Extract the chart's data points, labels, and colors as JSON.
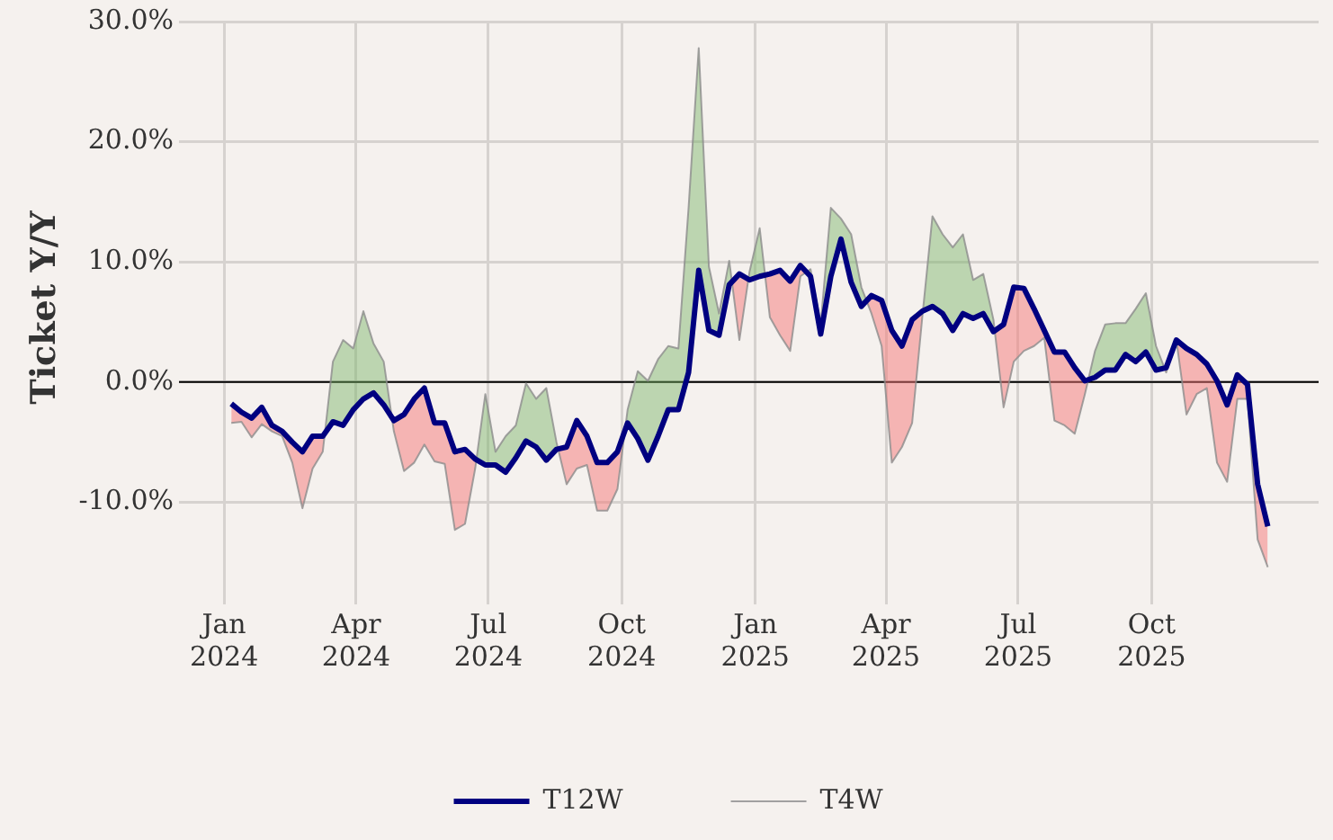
{
  "chart_data": {
    "type": "line",
    "ylabel": "Ticket Y/Y",
    "x": [
      "2024-01-06",
      "2024-01-13",
      "2024-01-20",
      "2024-01-27",
      "2024-02-03",
      "2024-02-10",
      "2024-02-17",
      "2024-02-24",
      "2024-03-02",
      "2024-03-09",
      "2024-03-16",
      "2024-03-23",
      "2024-03-30",
      "2024-04-06",
      "2024-04-13",
      "2024-04-20",
      "2024-04-27",
      "2024-05-04",
      "2024-05-11",
      "2024-05-18",
      "2024-05-25",
      "2024-06-01",
      "2024-06-08",
      "2024-06-15",
      "2024-06-22",
      "2024-06-29",
      "2024-07-06",
      "2024-07-13",
      "2024-07-20",
      "2024-07-27",
      "2024-08-03",
      "2024-08-10",
      "2024-08-17",
      "2024-08-24",
      "2024-08-31",
      "2024-09-07",
      "2024-09-14",
      "2024-09-21",
      "2024-09-28",
      "2024-10-05",
      "2024-10-12",
      "2024-10-19",
      "2024-10-26",
      "2024-11-02",
      "2024-11-09",
      "2024-11-16",
      "2024-11-23",
      "2024-11-30",
      "2024-12-07",
      "2024-12-14",
      "2024-12-21",
      "2024-12-28",
      "2025-01-04",
      "2025-01-11",
      "2025-01-18",
      "2025-01-25",
      "2025-02-01",
      "2025-02-08",
      "2025-02-15",
      "2025-02-22",
      "2025-03-01",
      "2025-03-08",
      "2025-03-15",
      "2025-03-22",
      "2025-03-29",
      "2025-04-05",
      "2025-04-12",
      "2025-04-19",
      "2025-04-26",
      "2025-05-03",
      "2025-05-10",
      "2025-05-17",
      "2025-05-24",
      "2025-05-31",
      "2025-06-07",
      "2025-06-14",
      "2025-06-21",
      "2025-06-28",
      "2025-07-05",
      "2025-07-12",
      "2025-07-19",
      "2025-07-26",
      "2025-08-02",
      "2025-08-09",
      "2025-08-16",
      "2025-08-23",
      "2025-08-30",
      "2025-09-06",
      "2025-09-13",
      "2025-09-20",
      "2025-09-27",
      "2025-10-04",
      "2025-10-11",
      "2025-10-18",
      "2025-10-25",
      "2025-11-01",
      "2025-11-08",
      "2025-11-15",
      "2025-11-22",
      "2025-11-29",
      "2025-12-06",
      "2025-12-13",
      "2025-12-20"
    ],
    "series": [
      {
        "name": "T4W",
        "color": "#8c8c8c",
        "values": [
          -3.4,
          -3.3,
          -4.6,
          -3.5,
          -4.1,
          -4.5,
          -6.7,
          -10.5,
          -7.2,
          -5.8,
          1.7,
          3.5,
          2.8,
          5.9,
          3.2,
          1.7,
          -4.1,
          -7.4,
          -6.7,
          -5.2,
          -6.6,
          -6.8,
          -12.3,
          -11.8,
          -7.2,
          -1.0,
          -5.8,
          -4.5,
          -3.6,
          -0.1,
          -1.4,
          -0.5,
          -5.0,
          -8.5,
          -7.2,
          -6.9,
          -10.7,
          -10.7,
          -8.9,
          -2.3,
          0.9,
          0.1,
          1.9,
          3.0,
          2.8,
          14.5,
          27.8,
          9.6,
          5.7,
          10.1,
          3.5,
          9.2,
          12.8,
          5.4,
          3.9,
          2.6,
          8.8,
          9.4,
          4.8,
          14.5,
          13.6,
          12.3,
          7.9,
          5.7,
          3.0,
          -6.7,
          -5.4,
          -3.4,
          5.4,
          13.8,
          12.3,
          11.2,
          12.3,
          8.5,
          9.0,
          5.2,
          -2.1,
          1.7,
          2.6,
          3.0,
          3.7,
          -3.2,
          -3.6,
          -4.3,
          -1.0,
          2.6,
          4.8,
          4.9,
          4.9,
          6.1,
          7.4,
          3.0,
          0.8,
          3.5,
          -2.7,
          -1.0,
          -0.5,
          -6.7,
          -8.3,
          -1.4,
          -1.4,
          -13.1,
          -15.4
        ]
      },
      {
        "name": "T12W",
        "color": "#000080",
        "values": [
          -1.8,
          -2.5,
          -3.0,
          -2.1,
          -3.6,
          -4.1,
          -5.0,
          -5.8,
          -4.5,
          -4.5,
          -3.3,
          -3.6,
          -2.3,
          -1.4,
          -0.9,
          -1.9,
          -3.2,
          -2.7,
          -1.4,
          -0.5,
          -3.4,
          -3.4,
          -5.8,
          -5.6,
          -6.4,
          -6.9,
          -6.9,
          -7.5,
          -6.3,
          -4.9,
          -5.4,
          -6.5,
          -5.6,
          -5.4,
          -3.2,
          -4.5,
          -6.7,
          -6.7,
          -5.8,
          -3.4,
          -4.7,
          -6.5,
          -4.5,
          -2.3,
          -2.3,
          0.8,
          9.3,
          4.3,
          3.9,
          8.1,
          9.0,
          8.5,
          8.8,
          9.0,
          9.3,
          8.4,
          9.7,
          8.8,
          4.0,
          8.8,
          11.9,
          8.3,
          6.3,
          7.2,
          6.8,
          4.3,
          3.0,
          5.2,
          5.9,
          6.3,
          5.7,
          4.3,
          5.7,
          5.3,
          5.7,
          4.2,
          4.8,
          7.9,
          7.8,
          6.1,
          4.3,
          2.5,
          2.5,
          1.2,
          0.1,
          0.4,
          1.0,
          1.0,
          2.3,
          1.7,
          2.5,
          1.0,
          1.2,
          3.5,
          2.8,
          2.3,
          1.5,
          0.1,
          -1.9,
          0.6,
          -0.2,
          -8.5,
          -12.0
        ]
      }
    ],
    "ylim": [
      -17.6,
      30
    ],
    "yticks": [
      {
        "value": -10,
        "label": "-10.0%"
      },
      {
        "value": 0,
        "label": "0.0%"
      },
      {
        "value": 10,
        "label": "10.0%"
      },
      {
        "value": 20,
        "label": "20.0%"
      },
      {
        "value": 30,
        "label": "30.0%"
      }
    ],
    "xlim": [
      "2023-12-01",
      "2026-01-24"
    ],
    "xticks": [
      {
        "value": "2024-01-01",
        "label": "Jan 2024"
      },
      {
        "value": "2024-04-01",
        "label": "Apr 2024"
      },
      {
        "value": "2024-07-01",
        "label": "Jul 2024"
      },
      {
        "value": "2024-10-01",
        "label": "Oct 2024"
      },
      {
        "value": "2025-01-01",
        "label": "Jan 2025"
      },
      {
        "value": "2025-04-01",
        "label": "Apr 2025"
      },
      {
        "value": "2025-07-01",
        "label": "Jul 2025"
      },
      {
        "value": "2025-10-01",
        "label": "Oct 2025"
      }
    ],
    "ref_lines": [
      {
        "axis": "y",
        "value": 0,
        "color": "#000000"
      }
    ],
    "grid": true,
    "legend": "bottom",
    "marker": "none",
    "line_style": "solid"
  }
}
